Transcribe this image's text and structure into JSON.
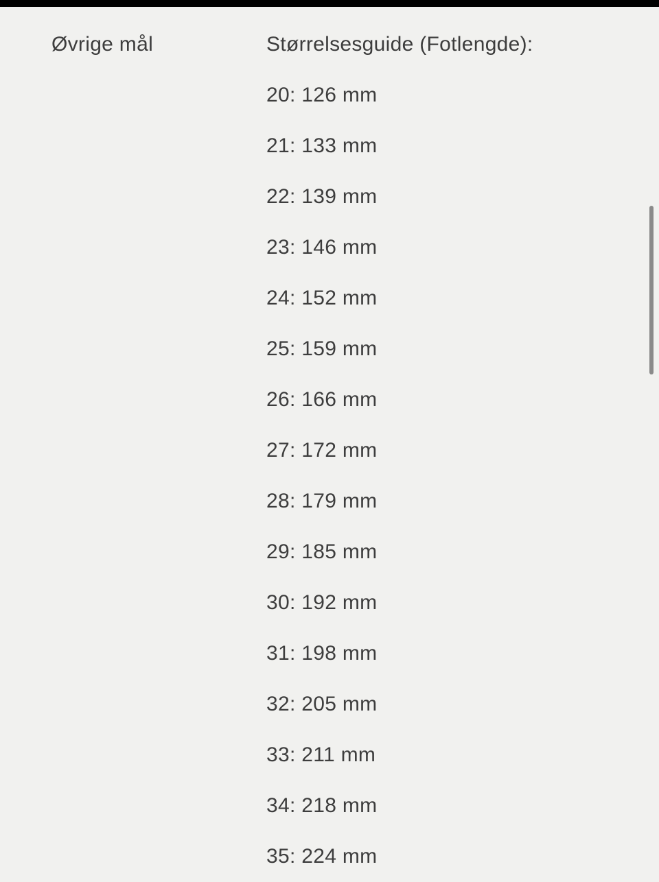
{
  "page": {
    "background_color": "#f1f1ef",
    "top_bar_color": "#000000",
    "text_color": "#3d3d3d",
    "scrollbar_color": "#8a8a8a"
  },
  "attribute": {
    "label": "Øvrige mål",
    "value_heading": "Størrelsesguide (Fotlengde):",
    "sizes": [
      {
        "size": "20",
        "foot_length": "126 mm",
        "text": "20: 126 mm"
      },
      {
        "size": "21",
        "foot_length": "133 mm",
        "text": "21: 133 mm"
      },
      {
        "size": "22",
        "foot_length": "139 mm",
        "text": "22: 139 mm"
      },
      {
        "size": "23",
        "foot_length": "146 mm",
        "text": "23: 146 mm"
      },
      {
        "size": "24",
        "foot_length": "152 mm",
        "text": "24: 152 mm"
      },
      {
        "size": "25",
        "foot_length": "159 mm",
        "text": "25: 159 mm"
      },
      {
        "size": "26",
        "foot_length": "166 mm",
        "text": "26: 166 mm"
      },
      {
        "size": "27",
        "foot_length": "172 mm",
        "text": "27: 172 mm"
      },
      {
        "size": "28",
        "foot_length": "179 mm",
        "text": "28: 179 mm"
      },
      {
        "size": "29",
        "foot_length": "185 mm",
        "text": "29: 185 mm"
      },
      {
        "size": "30",
        "foot_length": "192 mm",
        "text": "30: 192 mm"
      },
      {
        "size": "31",
        "foot_length": "198 mm",
        "text": "31: 198 mm"
      },
      {
        "size": "32",
        "foot_length": "205 mm",
        "text": "32: 205 mm"
      },
      {
        "size": "33",
        "foot_length": "211 mm",
        "text": "33: 211 mm"
      },
      {
        "size": "34",
        "foot_length": "218 mm",
        "text": "34: 218 mm"
      },
      {
        "size": "35",
        "foot_length": "224 mm",
        "text": "35: 224 mm"
      }
    ]
  }
}
